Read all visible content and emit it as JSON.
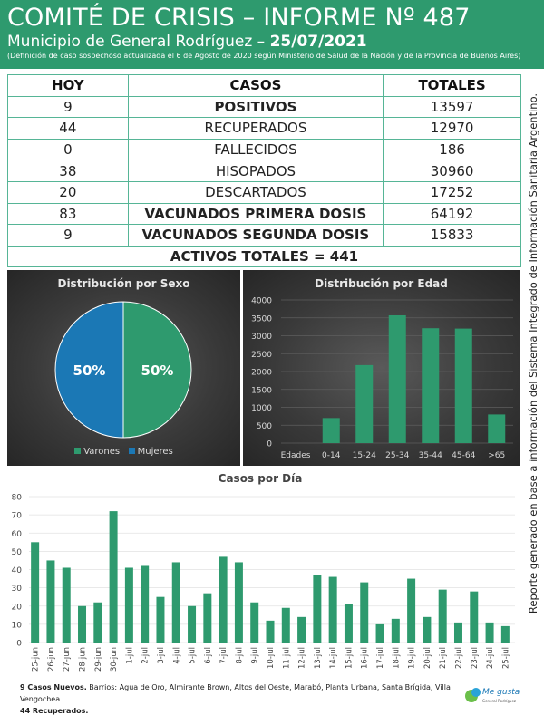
{
  "header": {
    "title": "COMITÉ DE CRISIS – INFORME Nº 487",
    "subtitle_prefix": "Municipio de General Rodríguez – ",
    "date": "25/07/2021",
    "note": "(Definición de caso sospechoso actualizada el 6 de Agosto de 2020 según Ministerio de Salud de la Nación y de la Provincia de Buenos Aires)"
  },
  "table": {
    "headers": [
      "HOY",
      "CASOS",
      "TOTALES"
    ],
    "rows": [
      {
        "hoy": "9",
        "caso": "POSITIVOS",
        "total": "13597",
        "style": "g-bold"
      },
      {
        "hoy": "44",
        "caso": "RECUPERADOS",
        "total": "12970",
        "style": "g-norm"
      },
      {
        "hoy": "0",
        "caso": "FALLECIDOS",
        "total": "186",
        "style": ""
      },
      {
        "hoy": "38",
        "caso": "HISOPADOS",
        "total": "30960",
        "style": ""
      },
      {
        "hoy": "20",
        "caso": "DESCARTADOS",
        "total": "17252",
        "style": ""
      },
      {
        "hoy": "83",
        "caso": "VACUNADOS PRIMERA DOSIS",
        "total": "64192",
        "style": "b-bold"
      },
      {
        "hoy": "9",
        "caso": "VACUNADOS SEGUNDA DOSIS",
        "total": "15833",
        "style": "b-bold"
      }
    ],
    "activos": "ACTIVOS TOTALES = 441"
  },
  "side_note": "Reporte generado en base a información del Sistema Integrado de Información Sanitaria Argentino.",
  "colors": {
    "green": "#2e9a6e",
    "blue": "#1b78b5",
    "orange": "#f09a1f",
    "header_bg": "#2e9a6e"
  },
  "chart_data": [
    {
      "type": "pie",
      "title": "Distribución por Sexo",
      "labels": [
        "Varones",
        "Mujeres"
      ],
      "values": [
        50,
        50
      ],
      "value_labels": [
        "50%",
        "50%"
      ],
      "colors": [
        "#2e9a6e",
        "#1b78b5"
      ],
      "legend": "bottom"
    },
    {
      "type": "bar",
      "title": "Distribución por Edad",
      "xlabel": "Edades",
      "categories": [
        "0-14",
        "15-24",
        "25-34",
        "35-44",
        "45-64",
        ">65"
      ],
      "values": [
        700,
        2180,
        3570,
        3210,
        3200,
        800
      ],
      "ylim": [
        0,
        4000
      ],
      "yticks": [
        0,
        500,
        1000,
        1500,
        2000,
        2500,
        3000,
        3500,
        4000
      ],
      "grid": true,
      "color": "#2e9a6e"
    },
    {
      "type": "bar",
      "title": "Casos por Día",
      "categories": [
        "25-jun",
        "26-jun",
        "27-jun",
        "28-jun",
        "29-jun",
        "30-jun",
        "1-jul",
        "2-jul",
        "3-jul",
        "4-jul",
        "5-jul",
        "6-jul",
        "7-jul",
        "8-jul",
        "9-jul",
        "10-jul",
        "11-jul",
        "12-jul",
        "13-jul",
        "14-jul",
        "15-jul",
        "16-jul",
        "17-jul",
        "18-jul",
        "19-jul",
        "20-jul",
        "21-jul",
        "22-jul",
        "23-jul",
        "24-jul",
        "25-jul"
      ],
      "values": [
        55,
        45,
        41,
        20,
        22,
        72,
        41,
        42,
        25,
        44,
        20,
        27,
        47,
        44,
        22,
        12,
        19,
        14,
        37,
        36,
        21,
        33,
        10,
        13,
        35,
        14,
        29,
        11,
        28,
        11,
        9
      ],
      "ylim": [
        0,
        80
      ],
      "yticks": [
        0,
        10,
        20,
        30,
        40,
        50,
        60,
        70,
        80
      ],
      "grid": true,
      "color": "#2e9a6e"
    }
  ],
  "footer": {
    "line1_bold": "9 Casos Nuevos.",
    "line1": " Barrios: Agua de Oro, Almirante Brown, Altos del Oeste, Marabó, Planta Urbana, Santa Brígida, Villa Vengochea.",
    "line2_bold": "44 Recuperados."
  },
  "logo": {
    "line1": "Me gusta",
    "line2": "General Rodríguez"
  }
}
